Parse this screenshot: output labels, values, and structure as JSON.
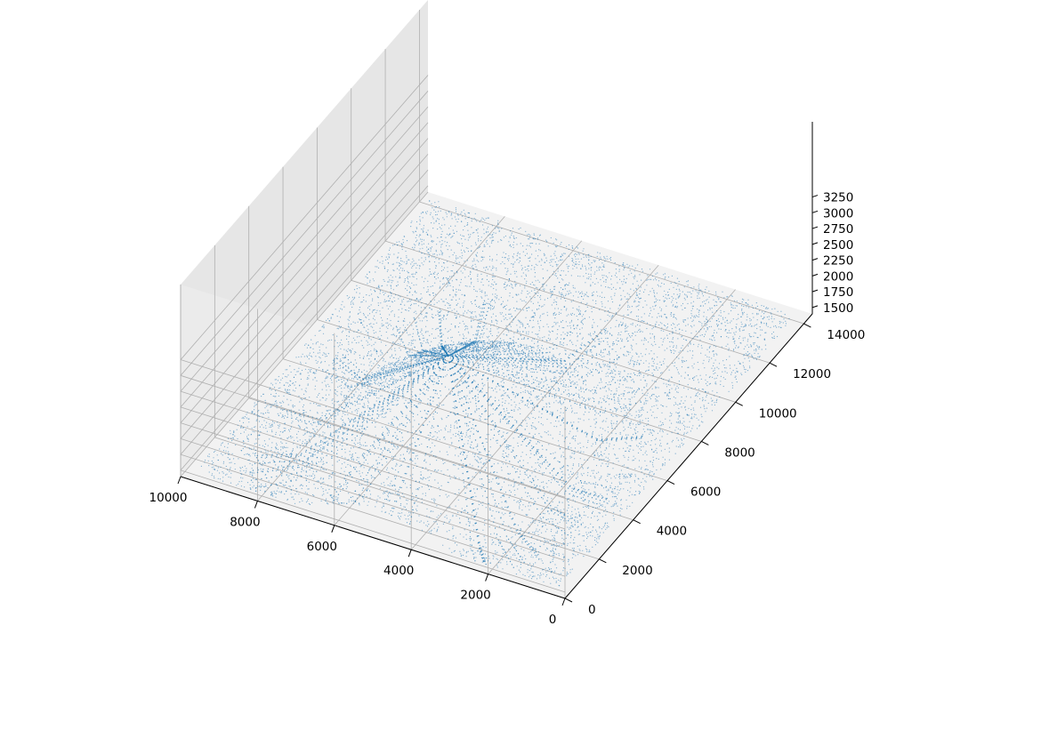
{
  "chart_data": {
    "type": "scatter",
    "projection": "3d",
    "title": "",
    "xlabel": "",
    "ylabel": "",
    "zlabel": "",
    "grid": true,
    "colors": {
      "points": "#1f77b4",
      "pane_floor": "#f2f2f2",
      "pane_wall_back": "#ebebeb",
      "pane_wall_side": "#e6e6e6",
      "grid": "#b0b0b0",
      "axis": "#000000"
    },
    "xlim": [
      0,
      10000
    ],
    "ylim": [
      0,
      14500
    ],
    "zlim": [
      1400,
      3300
    ],
    "x_ticks": [
      {
        "value": 10000,
        "label": "10000"
      },
      {
        "value": 8000,
        "label": "8000"
      },
      {
        "value": 6000,
        "label": "6000"
      },
      {
        "value": 4000,
        "label": "4000"
      },
      {
        "value": 2000,
        "label": "2000"
      },
      {
        "value": 0,
        "label": "0"
      }
    ],
    "y_ticks": [
      {
        "value": 0,
        "label": "0"
      },
      {
        "value": 2000,
        "label": "2000"
      },
      {
        "value": 4000,
        "label": "4000"
      },
      {
        "value": 6000,
        "label": "6000"
      },
      {
        "value": 8000,
        "label": "8000"
      },
      {
        "value": 10000,
        "label": "10000"
      },
      {
        "value": 12000,
        "label": "12000"
      },
      {
        "value": 14000,
        "label": "14000"
      }
    ],
    "z_ticks": [
      {
        "value": 1500,
        "label": "1500"
      },
      {
        "value": 1750,
        "label": "1750"
      },
      {
        "value": 2000,
        "label": "2000"
      },
      {
        "value": 2250,
        "label": "2250"
      },
      {
        "value": 2500,
        "label": "2500"
      },
      {
        "value": 2750,
        "label": "2750"
      },
      {
        "value": 3000,
        "label": "3000"
      },
      {
        "value": 3250,
        "label": "3250"
      }
    ],
    "series": [
      {
        "marker": "point",
        "summit": {
          "x": 4900,
          "y": 4200,
          "z": 3250
        },
        "x_extent": [
          200,
          9700
        ],
        "y_extent": [
          100,
          14000
        ],
        "z_extent": [
          1500,
          3250
        ]
      }
    ]
  }
}
